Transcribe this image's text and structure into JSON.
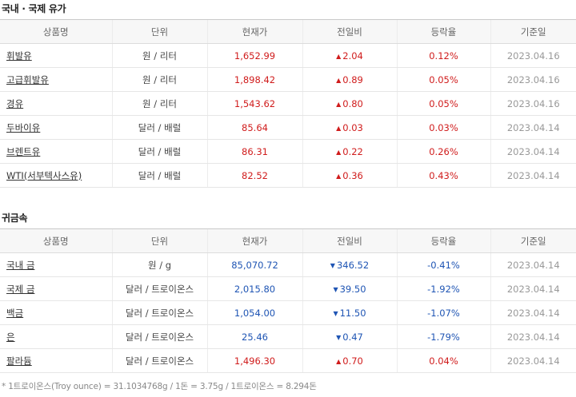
{
  "oil": {
    "title": "국내 · 국제 유가",
    "headers": [
      "상품명",
      "단위",
      "현재가",
      "전일비",
      "등락율",
      "기준일"
    ],
    "rows": [
      {
        "name": "휘발유",
        "unit": "원 / 리터",
        "price": "1,652.99",
        "dir": "up",
        "arrow": "▲",
        "change": "2.04",
        "rate": "0.12%",
        "date": "2023.04.16"
      },
      {
        "name": "고급휘발유",
        "unit": "원 / 리터",
        "price": "1,898.42",
        "dir": "up",
        "arrow": "▲",
        "change": "0.89",
        "rate": "0.05%",
        "date": "2023.04.16"
      },
      {
        "name": "경유",
        "unit": "원 / 리터",
        "price": "1,543.62",
        "dir": "up",
        "arrow": "▲",
        "change": "0.80",
        "rate": "0.05%",
        "date": "2023.04.16"
      },
      {
        "name": "두바이유",
        "unit": "달러 / 배럴",
        "price": "85.64",
        "dir": "up",
        "arrow": "▲",
        "change": "0.03",
        "rate": "0.03%",
        "date": "2023.04.14"
      },
      {
        "name": "브렌트유",
        "unit": "달러 / 배럴",
        "price": "86.31",
        "dir": "up",
        "arrow": "▲",
        "change": "0.22",
        "rate": "0.26%",
        "date": "2023.04.14"
      },
      {
        "name": "WTI(서부텍사스유)",
        "unit": "달러 / 배럴",
        "price": "82.52",
        "dir": "up",
        "arrow": "▲",
        "change": "0.36",
        "rate": "0.43%",
        "date": "2023.04.14"
      }
    ]
  },
  "metal": {
    "title": "귀금속",
    "headers": [
      "상품명",
      "단위",
      "현재가",
      "전일비",
      "등락율",
      "기준일"
    ],
    "rows": [
      {
        "name": "국내 금",
        "unit": "원 / g",
        "price": "85,070.72",
        "dir": "down",
        "arrow": "▼",
        "change": "346.52",
        "rate": "-0.41%",
        "date": "2023.04.14"
      },
      {
        "name": "국제 금",
        "unit": "달러 / 트로이온스",
        "price": "2,015.80",
        "dir": "down",
        "arrow": "▼",
        "change": "39.50",
        "rate": "-1.92%",
        "date": "2023.04.14"
      },
      {
        "name": "백금",
        "unit": "달러 / 트로이온스",
        "price": "1,054.00",
        "dir": "down",
        "arrow": "▼",
        "change": "11.50",
        "rate": "-1.07%",
        "date": "2023.04.14"
      },
      {
        "name": "은",
        "unit": "달러 / 트로이온스",
        "price": "25.46",
        "dir": "down",
        "arrow": "▼",
        "change": "0.47",
        "rate": "-1.79%",
        "date": "2023.04.14"
      },
      {
        "name": "팔라듐",
        "unit": "달러 / 트로이온스",
        "price": "1,496.30",
        "dir": "up",
        "arrow": "▲",
        "change": "0.70",
        "rate": "0.04%",
        "date": "2023.04.14"
      }
    ]
  },
  "footnote": "* 1트로이온스(Troy ounce) = 31.1034768g / 1돈 = 3.75g / 1트로이온스 = 8.294돈",
  "colors": {
    "up": "#d01c1c",
    "down": "#1f55b4"
  }
}
